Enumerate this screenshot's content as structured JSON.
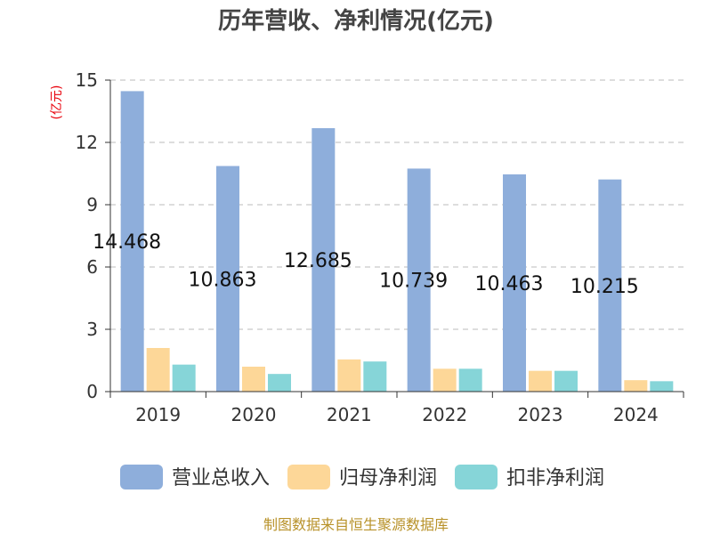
{
  "chart_data": {
    "type": "bar",
    "title": "历年营收、净利情况(亿元)",
    "ylabel": "(亿元)",
    "xlabel": "",
    "categories": [
      "2019",
      "2020",
      "2021",
      "2022",
      "2023",
      "2024"
    ],
    "ylim": [
      0,
      15
    ],
    "yticks": [
      0,
      3,
      6,
      9,
      12,
      15
    ],
    "grid": "horizontal dashed",
    "legend_position": "bottom",
    "series": [
      {
        "name": "营业总收入",
        "color": "#8eaedb",
        "values": [
          14.468,
          10.863,
          12.685,
          10.739,
          10.463,
          10.215
        ],
        "show_labels": true
      },
      {
        "name": "归母净利润",
        "color": "#fdd798",
        "values": [
          2.1,
          1.2,
          1.55,
          1.1,
          1.0,
          0.55
        ],
        "show_labels": false
      },
      {
        "name": "扣非净利润",
        "color": "#86d5d8",
        "values": [
          1.3,
          0.85,
          1.45,
          1.1,
          1.0,
          0.5
        ],
        "show_labels": false
      }
    ]
  },
  "footer": {
    "source": "制图数据来自恒生聚源数据库"
  }
}
